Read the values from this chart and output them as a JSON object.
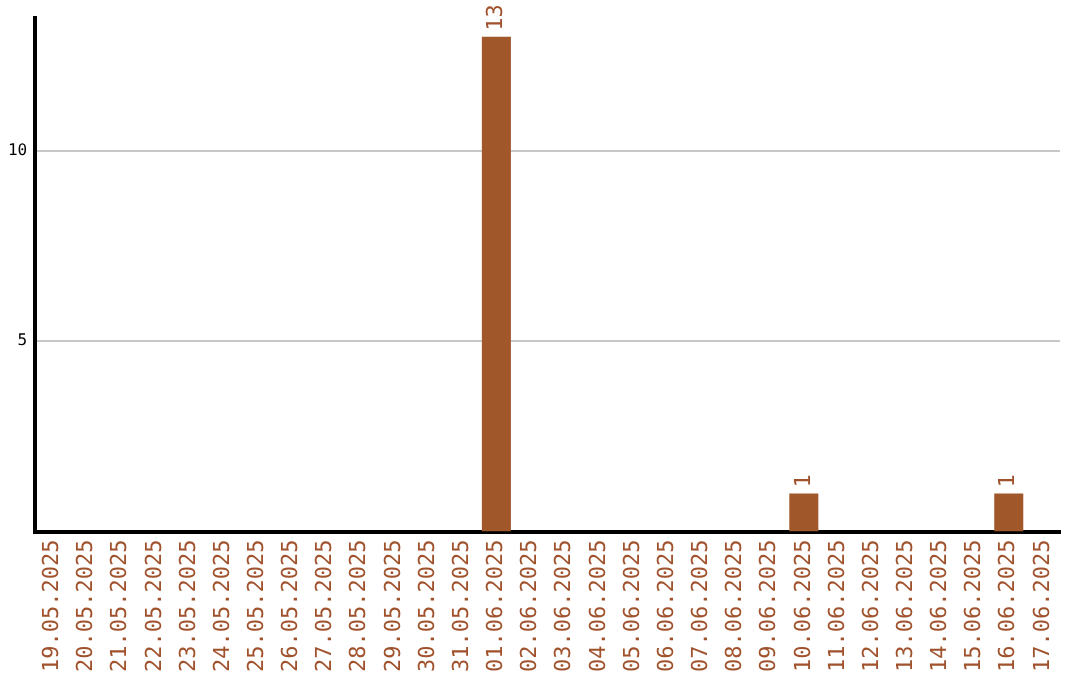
{
  "chart_data": {
    "type": "bar",
    "categories": [
      "19.05.2025",
      "20.05.2025",
      "21.05.2025",
      "22.05.2025",
      "23.05.2025",
      "24.05.2025",
      "25.05.2025",
      "26.05.2025",
      "27.05.2025",
      "28.05.2025",
      "29.05.2025",
      "30.05.2025",
      "31.05.2025",
      "01.06.2025",
      "02.06.2025",
      "03.06.2025",
      "04.06.2025",
      "05.06.2025",
      "06.06.2025",
      "07.06.2025",
      "08.06.2025",
      "09.06.2025",
      "10.06.2025",
      "11.06.2025",
      "12.06.2025",
      "13.06.2025",
      "14.06.2025",
      "15.06.2025",
      "16.06.2025",
      "17.06.2025"
    ],
    "values": [
      0,
      0,
      0,
      0,
      0,
      0,
      0,
      0,
      0,
      0,
      0,
      0,
      0,
      13,
      0,
      0,
      0,
      0,
      0,
      0,
      0,
      0,
      1,
      0,
      0,
      0,
      0,
      0,
      1,
      0
    ],
    "value_labels": [
      null,
      null,
      null,
      null,
      null,
      null,
      null,
      null,
      null,
      null,
      null,
      null,
      null,
      "13",
      null,
      null,
      null,
      null,
      null,
      null,
      null,
      null,
      "1",
      null,
      null,
      null,
      null,
      null,
      "1",
      null
    ],
    "color": "#a0572a",
    "ylim": [
      0,
      13.5
    ],
    "yticks": [
      5,
      10
    ],
    "grid": "y",
    "legend": false
  }
}
